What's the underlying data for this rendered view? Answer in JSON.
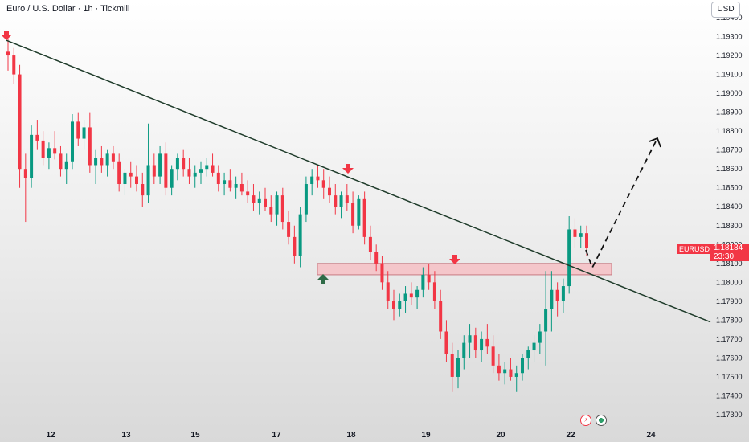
{
  "header": {
    "symbol_title": "Euro / U.S. Dollar · 1h · Tickmill",
    "currency": "USD"
  },
  "price_tag": {
    "symbol": "EURUSD",
    "price": "1.18184",
    "countdown": "23:30"
  },
  "colors": {
    "up": "#089981",
    "down": "#f23645",
    "trendline": "#1e3b2a",
    "zone": "#f4c6ca",
    "zone_border": "#c87a82",
    "arrow_up": "#2f6b47"
  },
  "icons": [
    "lightning-icon",
    "record-icon"
  ],
  "chart_data": {
    "type": "candlestick",
    "ylim": [
      1.173,
      1.194
    ],
    "y_ticks": [
      "1.17300",
      "1.17400",
      "1.17500",
      "1.17600",
      "1.17700",
      "1.17800",
      "1.17900",
      "1.18000",
      "1.18100",
      "1.18200",
      "1.18300",
      "1.18400",
      "1.18500",
      "1.18600",
      "1.18700",
      "1.18800",
      "1.18900",
      "1.19000",
      "1.19100",
      "1.19200",
      "1.19300",
      "1.19400"
    ],
    "x_ticks": [
      "12",
      "13",
      "15",
      "17",
      "18",
      "19",
      "20",
      "22",
      "24"
    ],
    "last_price": 1.18184,
    "annotations": {
      "trendline": [
        [
          0,
          1.1928
        ],
        [
          119,
          1.1779
        ]
      ],
      "support_zone": [
        1.1804,
        1.181
      ],
      "down_markers": 3,
      "up_markers": 1,
      "projection": "dashed arrow up toward 1.1876"
    },
    "ohlc": [
      [
        1.1922,
        1.1929,
        1.1912,
        1.192
      ],
      [
        1.192,
        1.1924,
        1.1905,
        1.191
      ],
      [
        1.191,
        1.1915,
        1.185,
        1.186
      ],
      [
        1.186,
        1.1868,
        1.1832,
        1.1855
      ],
      [
        1.1855,
        1.1883,
        1.185,
        1.1878
      ],
      [
        1.1878,
        1.1886,
        1.187,
        1.1875
      ],
      [
        1.1875,
        1.188,
        1.1862,
        1.1866
      ],
      [
        1.1866,
        1.1874,
        1.186,
        1.1871
      ],
      [
        1.1871,
        1.188,
        1.1865,
        1.1868
      ],
      [
        1.1868,
        1.1872,
        1.1856,
        1.186
      ],
      [
        1.186,
        1.1868,
        1.1852,
        1.1864
      ],
      [
        1.1864,
        1.1889,
        1.186,
        1.1885
      ],
      [
        1.1885,
        1.189,
        1.1872,
        1.1876
      ],
      [
        1.1876,
        1.1886,
        1.187,
        1.1882
      ],
      [
        1.1882,
        1.189,
        1.1858,
        1.1862
      ],
      [
        1.1862,
        1.187,
        1.1852,
        1.1866
      ],
      [
        1.1866,
        1.1872,
        1.1858,
        1.1862
      ],
      [
        1.1862,
        1.187,
        1.1856,
        1.1868
      ],
      [
        1.1868,
        1.1872,
        1.186,
        1.1864
      ],
      [
        1.1864,
        1.1868,
        1.1848,
        1.1852
      ],
      [
        1.1852,
        1.186,
        1.1846,
        1.1858
      ],
      [
        1.1858,
        1.1864,
        1.185,
        1.1856
      ],
      [
        1.1856,
        1.1862,
        1.1848,
        1.1852
      ],
      [
        1.1852,
        1.1858,
        1.184,
        1.1846
      ],
      [
        1.1846,
        1.1884,
        1.1842,
        1.1862
      ],
      [
        1.1862,
        1.1868,
        1.1852,
        1.1856
      ],
      [
        1.1856,
        1.1872,
        1.1852,
        1.1868
      ],
      [
        1.1868,
        1.1874,
        1.1846,
        1.185
      ],
      [
        1.185,
        1.1862,
        1.1846,
        1.186
      ],
      [
        1.186,
        1.1868,
        1.1854,
        1.1866
      ],
      [
        1.1866,
        1.187,
        1.1856,
        1.186
      ],
      [
        1.186,
        1.1866,
        1.1852,
        1.1856
      ],
      [
        1.1856,
        1.1862,
        1.185,
        1.1858
      ],
      [
        1.1858,
        1.1864,
        1.1852,
        1.186
      ],
      [
        1.186,
        1.1866,
        1.1856,
        1.1862
      ],
      [
        1.1862,
        1.1868,
        1.1856,
        1.1858
      ],
      [
        1.1858,
        1.1862,
        1.1848,
        1.1852
      ],
      [
        1.1852,
        1.1858,
        1.1846,
        1.1854
      ],
      [
        1.1854,
        1.186,
        1.1848,
        1.185
      ],
      [
        1.185,
        1.1856,
        1.1844,
        1.1852
      ],
      [
        1.1852,
        1.1858,
        1.1846,
        1.1848
      ],
      [
        1.1848,
        1.1854,
        1.1842,
        1.1846
      ],
      [
        1.1846,
        1.1852,
        1.1838,
        1.1842
      ],
      [
        1.1842,
        1.1848,
        1.1836,
        1.1844
      ],
      [
        1.1844,
        1.185,
        1.1838,
        1.184
      ],
      [
        1.184,
        1.1846,
        1.1832,
        1.1836
      ],
      [
        1.1836,
        1.1848,
        1.183,
        1.1846
      ],
      [
        1.1846,
        1.185,
        1.1828,
        1.1832
      ],
      [
        1.1832,
        1.1838,
        1.182,
        1.1824
      ],
      [
        1.1824,
        1.183,
        1.181,
        1.1814
      ],
      [
        1.1814,
        1.184,
        1.1808,
        1.1836
      ],
      [
        1.1836,
        1.1856,
        1.1832,
        1.1852
      ],
      [
        1.1852,
        1.186,
        1.1846,
        1.1856
      ],
      [
        1.1856,
        1.1862,
        1.185,
        1.1854
      ],
      [
        1.1854,
        1.186,
        1.1844,
        1.185
      ],
      [
        1.185,
        1.1856,
        1.1842,
        1.1846
      ],
      [
        1.1846,
        1.1852,
        1.1836,
        1.184
      ],
      [
        1.184,
        1.1848,
        1.1834,
        1.1846
      ],
      [
        1.1846,
        1.1852,
        1.1838,
        1.1842
      ],
      [
        1.1842,
        1.1848,
        1.1826,
        1.183
      ],
      [
        1.183,
        1.1846,
        1.1828,
        1.1844
      ],
      [
        1.1844,
        1.1848,
        1.182,
        1.1824
      ],
      [
        1.1824,
        1.183,
        1.1812,
        1.1816
      ],
      [
        1.1816,
        1.182,
        1.1806,
        1.181
      ],
      [
        1.181,
        1.1814,
        1.1796,
        1.18
      ],
      [
        1.18,
        1.1806,
        1.1786,
        1.179
      ],
      [
        1.179,
        1.1796,
        1.178,
        1.1786
      ],
      [
        1.1786,
        1.1794,
        1.1782,
        1.179
      ],
      [
        1.179,
        1.1798,
        1.1784,
        1.1794
      ],
      [
        1.1794,
        1.18,
        1.1788,
        1.1792
      ],
      [
        1.1792,
        1.1798,
        1.1786,
        1.1796
      ],
      [
        1.1796,
        1.1808,
        1.1792,
        1.1804
      ],
      [
        1.1804,
        1.181,
        1.1796,
        1.18
      ],
      [
        1.18,
        1.1806,
        1.1786,
        1.179
      ],
      [
        1.179,
        1.1796,
        1.177,
        1.1774
      ],
      [
        1.1774,
        1.178,
        1.1758,
        1.1762
      ],
      [
        1.1762,
        1.1768,
        1.1742,
        1.175
      ],
      [
        1.175,
        1.1764,
        1.1744,
        1.176
      ],
      [
        1.176,
        1.1772,
        1.1754,
        1.1768
      ],
      [
        1.1768,
        1.1778,
        1.176,
        1.1772
      ],
      [
        1.1772,
        1.1776,
        1.176,
        1.1764
      ],
      [
        1.1764,
        1.1774,
        1.1758,
        1.177
      ],
      [
        1.177,
        1.1778,
        1.1762,
        1.1766
      ],
      [
        1.1766,
        1.1772,
        1.1752,
        1.1756
      ],
      [
        1.1756,
        1.1762,
        1.1748,
        1.1752
      ],
      [
        1.1752,
        1.1758,
        1.1746,
        1.1754
      ],
      [
        1.1754,
        1.176,
        1.1748,
        1.175
      ],
      [
        1.175,
        1.1756,
        1.1742,
        1.1752
      ],
      [
        1.1752,
        1.1762,
        1.1748,
        1.176
      ],
      [
        1.176,
        1.1766,
        1.1754,
        1.1764
      ],
      [
        1.1764,
        1.1772,
        1.1758,
        1.1768
      ],
      [
        1.1768,
        1.1778,
        1.1762,
        1.1774
      ],
      [
        1.1774,
        1.1806,
        1.1756,
        1.1786
      ],
      [
        1.1786,
        1.1806,
        1.1774,
        1.1796
      ],
      [
        1.1796,
        1.18,
        1.1782,
        1.179
      ],
      [
        1.179,
        1.1802,
        1.1784,
        1.1798
      ],
      [
        1.1798,
        1.1835,
        1.1794,
        1.1828
      ],
      [
        1.1828,
        1.1834,
        1.1818,
        1.1824
      ],
      [
        1.1824,
        1.183,
        1.1818,
        1.1826
      ],
      [
        1.1826,
        1.183,
        1.1814,
        1.1818
      ]
    ]
  }
}
